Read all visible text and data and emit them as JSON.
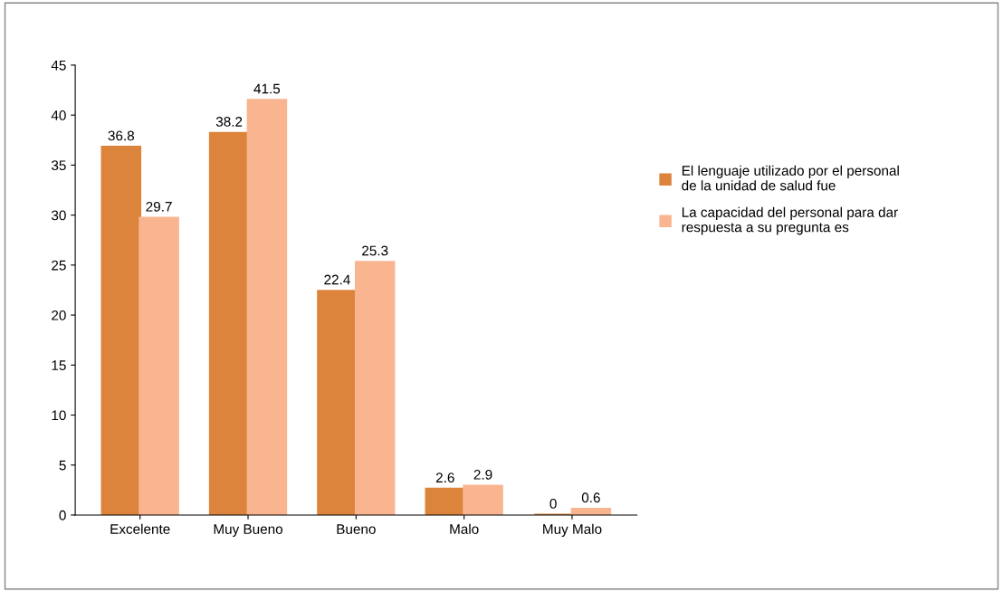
{
  "chart_data": {
    "type": "bar",
    "categories": [
      "Excelente",
      "Muy Bueno",
      "Bueno",
      "Malo",
      "Muy Malo"
    ],
    "series": [
      {
        "name": "El lenguaje utilizado por el personal de la unidad de salud fue",
        "color": "#dc843c",
        "values": [
          36.8,
          38.2,
          22.4,
          2.6,
          0
        ]
      },
      {
        "name": "La capacidad del personal para dar respuesta a su pregunta es",
        "color": "#f9b590",
        "values": [
          29.7,
          41.5,
          25.3,
          2.9,
          0.6
        ]
      }
    ],
    "ylim": [
      0,
      45
    ],
    "yticks": [
      0,
      5,
      10,
      15,
      20,
      25,
      30,
      35,
      40,
      45
    ],
    "data_labels": true,
    "legend": "right",
    "grid": false
  }
}
